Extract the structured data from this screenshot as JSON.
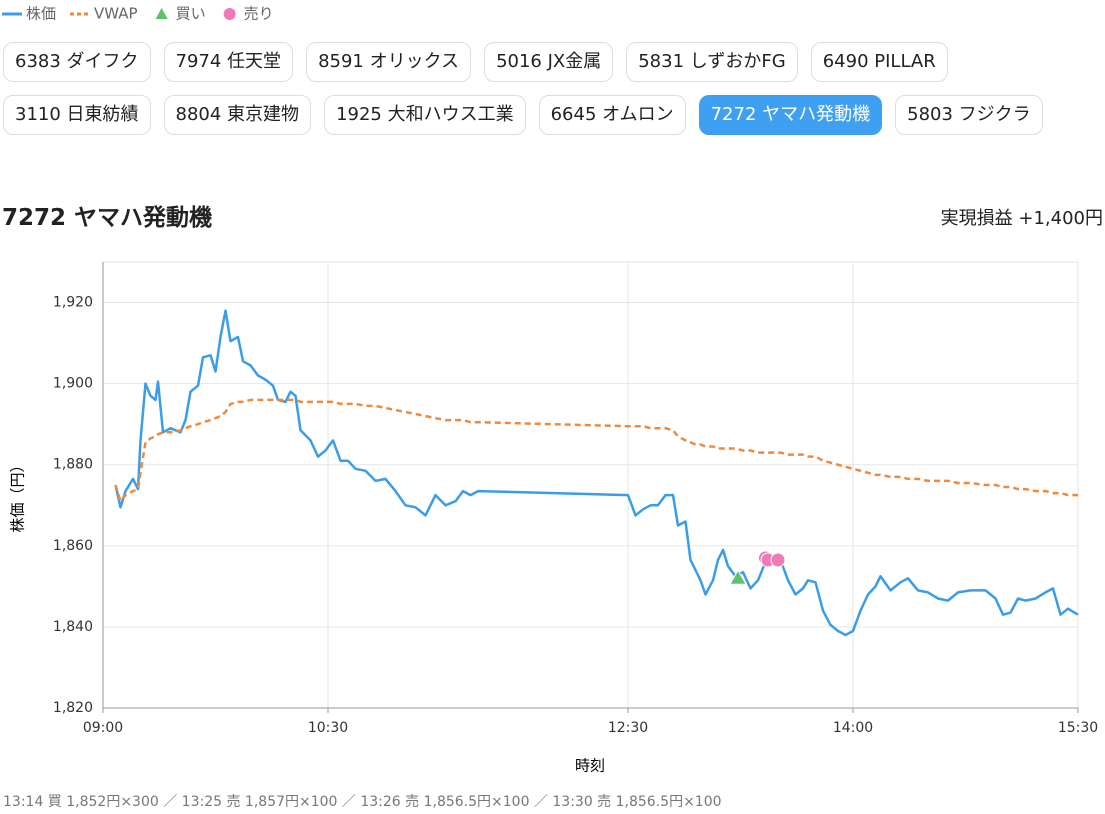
{
  "legend_position": "top-left",
  "tabs": {
    "items": [
      "6383 ダイフク",
      "7974 任天堂",
      "8591 オリックス",
      "5016 JX金属",
      "5831 しずおかFG",
      "6490 PILLAR",
      "3110 日東紡績",
      "8804 東京建物",
      "1925 大和ハウス工業",
      "6645 オムロン",
      "7272 ヤマハ発動機",
      "5803 フジクラ"
    ],
    "selected": 10
  },
  "header": {
    "title": "7272 ヤマハ発動機",
    "realized": "実現損益 +1,400円"
  },
  "chart_data": {
    "type": "line",
    "x_label": "時刻",
    "y_label": "株価（円）",
    "grid": true,
    "xlim": [
      "09:00",
      "15:30"
    ],
    "xticks": [
      "09:00",
      "10:30",
      "12:30",
      "14:00",
      "15:30"
    ],
    "ylim": [
      1820,
      1930
    ],
    "yticks": [
      {
        "value": 1820,
        "label": "1,820"
      },
      {
        "value": 1840,
        "label": "1,840"
      },
      {
        "value": 1860,
        "label": "1,860"
      },
      {
        "value": 1880,
        "label": "1,880"
      },
      {
        "value": 1900,
        "label": "1,900"
      },
      {
        "value": 1920,
        "label": "1,920"
      }
    ],
    "x": [
      "09:05",
      "09:07",
      "09:09",
      "09:12",
      "09:14",
      "09:15",
      "09:17",
      "09:19",
      "09:21",
      "09:22",
      "09:24",
      "09:27",
      "09:31",
      "09:33",
      "09:35",
      "09:38",
      "09:40",
      "09:43",
      "09:45",
      "09:47",
      "09:49",
      "09:51",
      "09:54",
      "09:56",
      "09:59",
      "10:02",
      "10:05",
      "10:08",
      "10:10",
      "10:13",
      "10:15",
      "10:17",
      "10:19",
      "10:23",
      "10:26",
      "10:29",
      "10:32",
      "10:35",
      "10:38",
      "10:41",
      "10:45",
      "10:49",
      "10:53",
      "10:57",
      "11:01",
      "11:05",
      "11:09",
      "11:13",
      "11:17",
      "11:21",
      "11:24",
      "11:27",
      "11:30",
      "12:30",
      "12:33",
      "12:36",
      "12:39",
      "12:42",
      "12:45",
      "12:48",
      "12:50",
      "12:53",
      "12:55",
      "12:57",
      "12:59",
      "13:01",
      "13:04",
      "13:06",
      "13:08",
      "13:10",
      "13:13",
      "13:16",
      "13:19",
      "13:22",
      "13:25",
      "13:28",
      "13:31",
      "13:34",
      "13:37",
      "13:40",
      "13:42",
      "13:45",
      "13:48",
      "13:51",
      "13:54",
      "13:57",
      "14:00",
      "14:03",
      "14:06",
      "14:09",
      "14:11",
      "14:15",
      "14:19",
      "14:22",
      "14:26",
      "14:30",
      "14:34",
      "14:38",
      "14:42",
      "14:47",
      "14:53",
      "14:57",
      "15:00",
      "15:03",
      "15:06",
      "15:09",
      "15:13",
      "15:17",
      "15:20",
      "15:23",
      "15:26",
      "15:30"
    ],
    "series": [
      {
        "name": "株価",
        "type": "line",
        "color": "#3b9de8",
        "dash": false,
        "values": [
          1875,
          1869.5,
          1873.5,
          1876.5,
          1874,
          1886,
          1900,
          1897,
          1896,
          1900.5,
          1888,
          1889,
          1888,
          1891,
          1898,
          1899.5,
          1906.5,
          1907,
          1903,
          1911.5,
          1918,
          1910.5,
          1911.5,
          1905.5,
          1904.5,
          1902,
          1901,
          1899.5,
          1896,
          1895.5,
          1898,
          1897,
          1888.5,
          1886,
          1882,
          1883.5,
          1886,
          1881,
          1881,
          1879,
          1878.5,
          1876,
          1876.5,
          1873.5,
          1870,
          1869.5,
          1867.5,
          1872.5,
          1870,
          1871,
          1873.5,
          1872.5,
          1873.5,
          1872.5,
          1867.5,
          1869,
          1870,
          1870,
          1872.5,
          1872.5,
          1865,
          1866,
          1856.5,
          1854,
          1851.5,
          1848,
          1851.5,
          1856.5,
          1859,
          1855,
          1852.5,
          1853.5,
          1849.5,
          1851.5,
          1856,
          1857,
          1856.5,
          1851.5,
          1848,
          1849.5,
          1851.5,
          1851,
          1844,
          1840.5,
          1839,
          1838,
          1839,
          1844,
          1848,
          1850,
          1852.5,
          1849,
          1851,
          1852,
          1849,
          1848.5,
          1847,
          1846.5,
          1848.5,
          1849,
          1849,
          1847,
          1843,
          1843.5,
          1847,
          1846.5,
          1847,
          1848.5,
          1849.5,
          1843,
          1844.5,
          1843
        ]
      },
      {
        "name": "VWAP",
        "type": "line",
        "color": "#ef8a3c",
        "dash": true,
        "values": [
          1875,
          1871,
          1872.5,
          1873.5,
          1874,
          1878,
          1885.5,
          1886.5,
          1887,
          1887.5,
          1888,
          1888,
          1888.5,
          1889,
          1889.5,
          1890,
          1890.5,
          1891,
          1891.5,
          1892,
          1893,
          1895,
          1895.5,
          1895.5,
          1896,
          1896,
          1896,
          1896,
          1896,
          1896,
          1896,
          1896,
          1895.5,
          1895.5,
          1895.5,
          1895.5,
          1895.5,
          1895,
          1895,
          1895,
          1894.5,
          1894.5,
          1894,
          1893.5,
          1893,
          1892.5,
          1892,
          1891.5,
          1891,
          1891,
          1891,
          1890.5,
          1890.5,
          1889.5,
          1889.5,
          1889.5,
          1889,
          1889,
          1889,
          1888.5,
          1887,
          1886,
          1885.5,
          1885,
          1885,
          1884.5,
          1884.5,
          1884,
          1884,
          1884,
          1884,
          1883.5,
          1883.5,
          1883,
          1883,
          1883,
          1883,
          1882.5,
          1882.5,
          1882.5,
          1882,
          1882,
          1881,
          1880.5,
          1880,
          1879.5,
          1879,
          1878.5,
          1878,
          1877.5,
          1877.5,
          1877,
          1877,
          1876.5,
          1876.5,
          1876,
          1876,
          1876,
          1875.5,
          1875.5,
          1875,
          1875,
          1874.5,
          1874.5,
          1874,
          1874,
          1873.5,
          1873.5,
          1873,
          1873,
          1872.5,
          1872.5
        ]
      },
      {
        "name": "買い",
        "type": "scatter",
        "marker": "triangle",
        "color": "#5cc26e",
        "x": [
          "13:14"
        ],
        "values": [
          1852
        ]
      },
      {
        "name": "売り",
        "type": "scatter",
        "marker": "circle",
        "color": "#ee7ab6",
        "x": [
          "13:25",
          "13:26",
          "13:30"
        ],
        "values": [
          1857,
          1856.5,
          1856.5
        ]
      }
    ]
  },
  "footer": "13:14 買 1,852円×300 ／ 13:25 売 1,857円×100 ／ 13:26 売 1,856.5円×100 ／ 13:30 売 1,856.5円×100"
}
